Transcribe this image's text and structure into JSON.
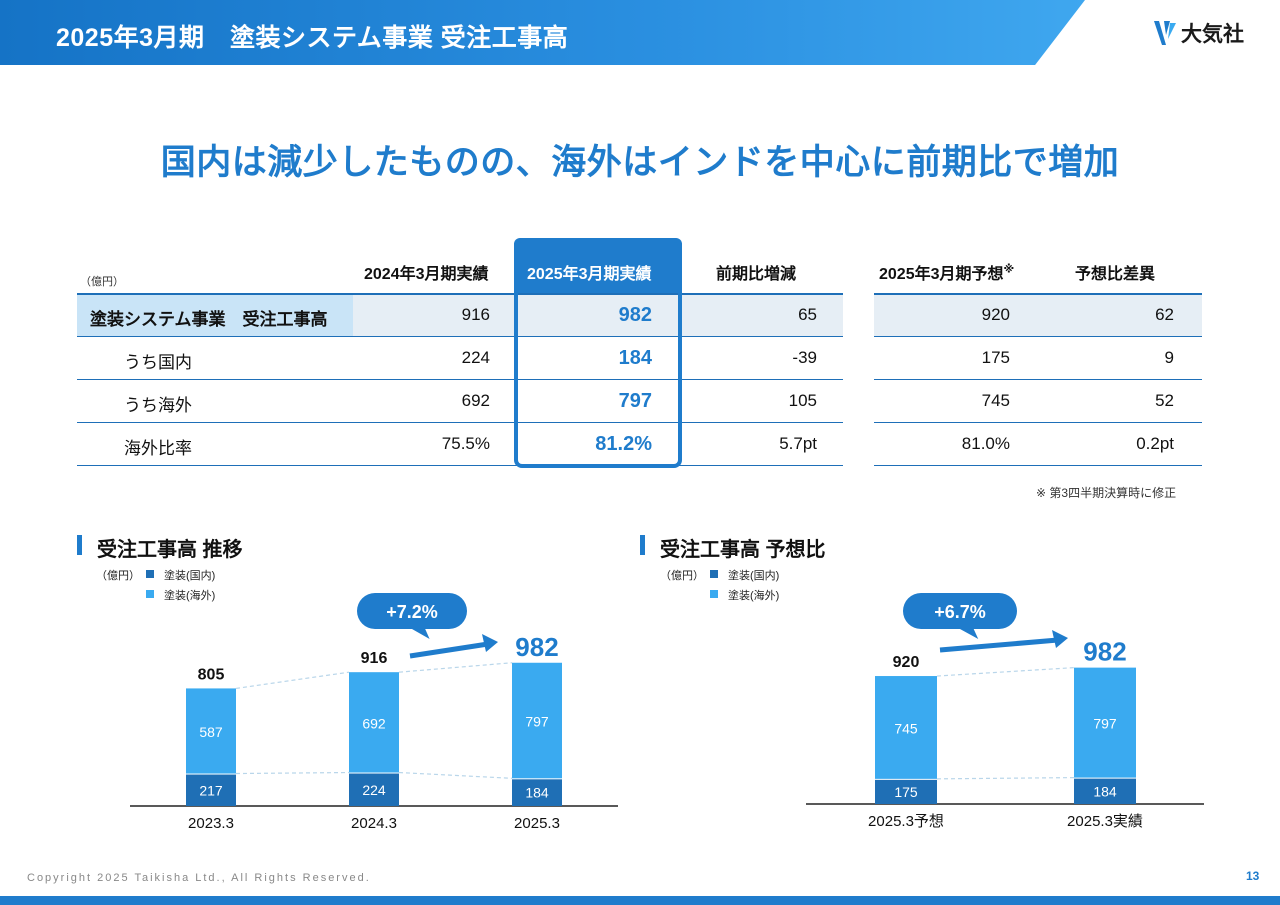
{
  "header": {
    "title": "2025年3月期　塗装システム事業 受注工事高",
    "logo_text": "大気社"
  },
  "headline": "国内は減少したものの、海外はインドを中心に前期比で増加",
  "table": {
    "unit": "（億円）",
    "columns": [
      "2024年3月期実績",
      "2025年3月期実績",
      "前期比増減"
    ],
    "forecast_columns": [
      "2025年3月期予想",
      "予想比差異"
    ],
    "forecast_mark": "※",
    "rows": [
      {
        "label": "塗装システム事業　受注工事高",
        "prev": "916",
        "cur": "982",
        "diff": "65",
        "fc": "920",
        "fcdiff": "62"
      },
      {
        "label": "うち国内",
        "prev": "224",
        "cur": "184",
        "diff": "-39",
        "fc": "175",
        "fcdiff": "9"
      },
      {
        "label": "うち海外",
        "prev": "692",
        "cur": "797",
        "diff": "105",
        "fc": "745",
        "fcdiff": "52"
      },
      {
        "label": "海外比率",
        "prev": "75.5%",
        "cur": "81.2%",
        "diff": "5.7pt",
        "fc": "81.0%",
        "fcdiff": "0.2pt"
      }
    ],
    "note": "※ 第3四半期決算時に修正"
  },
  "colors": {
    "domestic": "#1f6fb5",
    "overseas": "#3aaaf0",
    "accent": "#1f7ccc"
  },
  "chart_data": [
    {
      "type": "bar",
      "stacked": true,
      "title": "受注工事高 推移",
      "unit": "（億円）",
      "categories": [
        "2023.3",
        "2024.3",
        "2025.3"
      ],
      "series": [
        {
          "name": "塗装(国内)",
          "values": [
            217,
            224,
            184
          ]
        },
        {
          "name": "塗装(海外)",
          "values": [
            587,
            692,
            797
          ]
        }
      ],
      "totals": [
        "805",
        "916",
        "982"
      ],
      "growth": "+7.2%"
    },
    {
      "type": "bar",
      "stacked": true,
      "title": "受注工事高 予想比",
      "unit": "（億円）",
      "categories": [
        "2025.3予想",
        "2025.3実績"
      ],
      "series": [
        {
          "name": "塗装(国内)",
          "values": [
            175,
            184
          ]
        },
        {
          "name": "塗装(海外)",
          "values": [
            745,
            797
          ]
        }
      ],
      "totals": [
        "920",
        "982"
      ],
      "growth": "+6.7%"
    }
  ],
  "footer": {
    "copyright": "Copyright 2025 Taikisha Ltd., All Rights Reserved.",
    "page": "13"
  }
}
